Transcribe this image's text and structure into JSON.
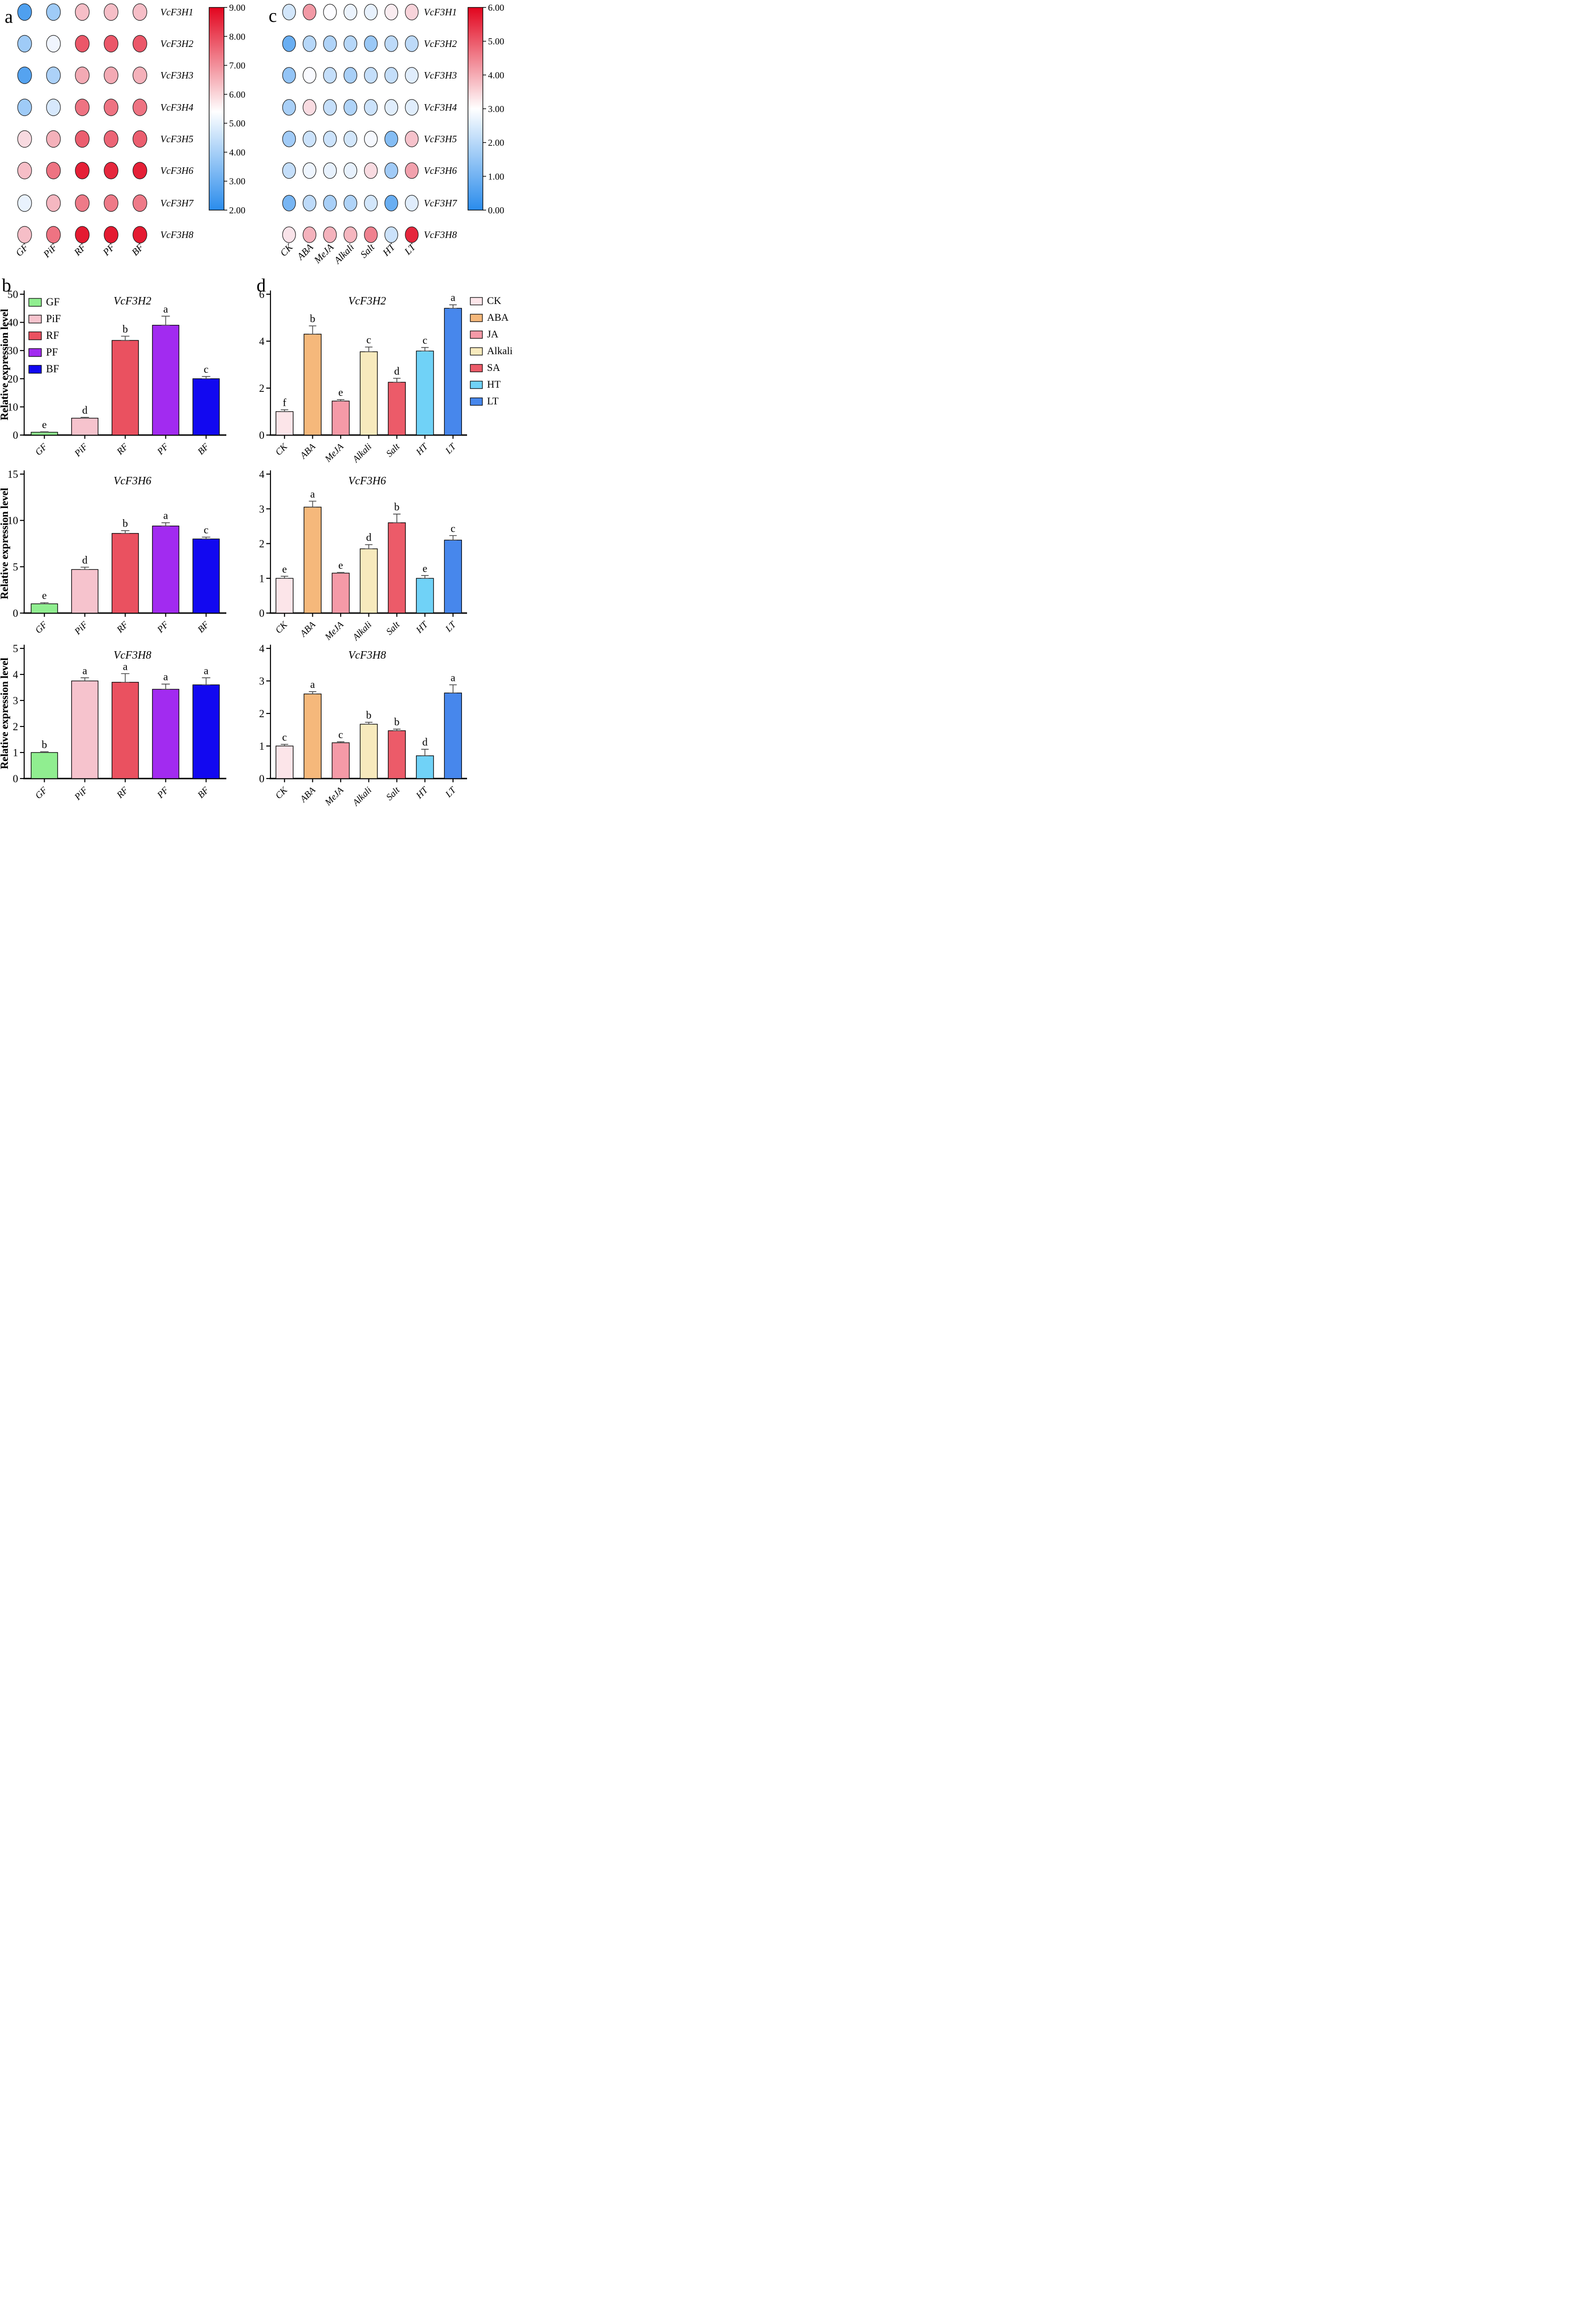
{
  "panels": {
    "a": {
      "letter": "a"
    },
    "b": {
      "letter": "b"
    },
    "c": {
      "letter": "c"
    },
    "d": {
      "letter": "d"
    }
  },
  "colors": {
    "heat_red": "#e2051e",
    "heat_white": "#fcfcff",
    "heat_blue": "#2a8cec",
    "axis": "#000000",
    "error_bar": "#4a4a4a"
  },
  "chart_data": [
    {
      "id": "heatmap_a",
      "type": "heatmap",
      "panel": "a",
      "columns": [
        "GF",
        "PiF",
        "RF",
        "PF",
        "BF"
      ],
      "rows": [
        "VcF3H1",
        "VcF3H2",
        "VcF3H3",
        "VcF3H4",
        "VcF3H5",
        "VcF3H6",
        "VcF3H7",
        "VcF3H8"
      ],
      "values": [
        [
          2.6,
          3.9,
          6.3,
          6.3,
          6.3
        ],
        [
          3.9,
          5.2,
          7.8,
          7.8,
          7.8
        ],
        [
          2.7,
          4.1,
          6.6,
          6.6,
          6.5
        ],
        [
          3.9,
          4.8,
          7.4,
          7.4,
          7.4
        ],
        [
          5.9,
          6.5,
          7.7,
          7.6,
          7.7
        ],
        [
          6.3,
          7.4,
          8.6,
          8.5,
          8.6
        ],
        [
          5.1,
          6.4,
          7.3,
          7.3,
          7.3
        ],
        [
          6.3,
          7.4,
          8.7,
          8.7,
          8.7
        ]
      ],
      "colorbar": {
        "min": 2,
        "max": 9,
        "mid": 5.4,
        "tick_labels": [
          "9.00",
          "8.00",
          "7.00",
          "6.00",
          "5.00",
          "4.00",
          "3.00",
          "2.00"
        ]
      }
    },
    {
      "id": "heatmap_c",
      "type": "heatmap",
      "panel": "c",
      "columns": [
        "CK",
        "ABA",
        "MeJA",
        "Alkali",
        "Salt",
        "HT",
        "LT"
      ],
      "rows": [
        "VcF3H1",
        "VcF3H2",
        "VcF3H3",
        "VcF3H4",
        "VcF3H5",
        "VcF3H6",
        "VcF3H7",
        "VcF3H8"
      ],
      "values": [
        [
          2.4,
          4.2,
          3.0,
          2.75,
          2.7,
          3.2,
          3.5
        ],
        [
          0.9,
          2.0,
          1.9,
          2.0,
          1.6,
          2.1,
          2.1
        ],
        [
          1.5,
          2.95,
          2.2,
          1.8,
          2.2,
          2.2,
          2.6
        ],
        [
          1.8,
          3.4,
          2.2,
          1.9,
          2.3,
          2.6,
          2.6
        ],
        [
          1.7,
          2.3,
          2.3,
          2.4,
          2.9,
          1.3,
          3.7
        ],
        [
          2.2,
          2.8,
          2.7,
          2.7,
          3.4,
          1.7,
          4.1
        ],
        [
          1.1,
          2.1,
          1.8,
          1.9,
          2.4,
          0.9,
          2.6
        ],
        [
          3.3,
          3.9,
          3.9,
          3.85,
          4.5,
          2.3,
          5.6
        ]
      ],
      "colorbar": {
        "min": 0,
        "max": 6,
        "mid": 3.0,
        "tick_labels": [
          "6.00",
          "5.00",
          "4.00",
          "3.00",
          "2.00",
          "1.00",
          "0.00"
        ]
      }
    },
    {
      "id": "b1",
      "type": "bar",
      "panel": "b",
      "title": "VcF3H2",
      "ylabel": "Relative expression level",
      "ylim": [
        0,
        50
      ],
      "yticks": [
        0,
        10,
        20,
        30,
        40,
        50
      ],
      "categories": [
        "GF",
        "PiF",
        "RF",
        "PF",
        "BF"
      ],
      "values": [
        1.0,
        6.0,
        33.6,
        39.0,
        20.0
      ],
      "errors": [
        0.15,
        0.3,
        1.5,
        3.2,
        0.8
      ],
      "sig_letters": [
        "e",
        "d",
        "b",
        "a",
        "c"
      ],
      "bar_colors": [
        "#90ee90",
        "#f6c3cd",
        "#ea5160",
        "#a22bf0",
        "#1208f0"
      ],
      "legend": [
        {
          "label": "GF",
          "color": "#90ee90"
        },
        {
          "label": "PiF",
          "color": "#f6c3cd"
        },
        {
          "label": "RF",
          "color": "#ea5160"
        },
        {
          "label": "PF",
          "color": "#a22bf0"
        },
        {
          "label": "BF",
          "color": "#1208f0"
        }
      ]
    },
    {
      "id": "b2",
      "type": "bar",
      "panel": "b",
      "title": "VcF3H6",
      "ylabel": "Relative expression level",
      "ylim": [
        0,
        15
      ],
      "yticks": [
        0,
        5,
        10,
        15
      ],
      "categories": [
        "GF",
        "PiF",
        "RF",
        "PF",
        "BF"
      ],
      "values": [
        1.0,
        4.7,
        8.6,
        9.4,
        8.0
      ],
      "errors": [
        0.12,
        0.25,
        0.3,
        0.35,
        0.2
      ],
      "sig_letters": [
        "e",
        "d",
        "b",
        "a",
        "c"
      ],
      "bar_colors": [
        "#90ee90",
        "#f6c3cd",
        "#ea5160",
        "#a22bf0",
        "#1208f0"
      ]
    },
    {
      "id": "b3",
      "type": "bar",
      "panel": "b",
      "title": "VcF3H8",
      "ylabel": "Relative expression level",
      "ylim": [
        0,
        5
      ],
      "yticks": [
        0,
        1,
        2,
        3,
        4,
        5
      ],
      "categories": [
        "GF",
        "PiF",
        "RF",
        "PF",
        "BF"
      ],
      "values": [
        1.0,
        3.75,
        3.7,
        3.43,
        3.6
      ],
      "errors": [
        0.03,
        0.12,
        0.33,
        0.2,
        0.27
      ],
      "sig_letters": [
        "b",
        "a",
        "a",
        "a",
        "a"
      ],
      "bar_colors": [
        "#90ee90",
        "#f6c3cd",
        "#ea5160",
        "#a22bf0",
        "#1208f0"
      ]
    },
    {
      "id": "d1",
      "type": "bar",
      "panel": "d",
      "title": "VcF3H2",
      "ylabel": "Relative expression level",
      "ylim": [
        0,
        6
      ],
      "yticks": [
        0,
        2,
        4,
        6
      ],
      "categories": [
        "CK",
        "ABA",
        "MeJA",
        "Alkali",
        "Salt",
        "HT",
        "LT"
      ],
      "values": [
        1.0,
        4.3,
        1.45,
        3.55,
        2.25,
        3.58,
        5.4
      ],
      "errors": [
        0.08,
        0.35,
        0.06,
        0.2,
        0.17,
        0.15,
        0.15
      ],
      "sig_letters": [
        "f",
        "b",
        "e",
        "c",
        "d",
        "c",
        "a"
      ],
      "bar_colors": [
        "#fce5e9",
        "#f5b87b",
        "#f59aa7",
        "#f7eabd",
        "#ec5b69",
        "#70d2f7",
        "#4787ec"
      ],
      "legend": [
        {
          "label": "CK",
          "color": "#fce5e9"
        },
        {
          "label": "ABA",
          "color": "#f5b87b"
        },
        {
          "label": "JA",
          "color": "#f59aa7"
        },
        {
          "label": "Alkali",
          "color": "#f7eabd"
        },
        {
          "label": "SA",
          "color": "#ec5b69"
        },
        {
          "label": "HT",
          "color": "#70d2f7"
        },
        {
          "label": "LT",
          "color": "#4787ec"
        }
      ]
    },
    {
      "id": "d2",
      "type": "bar",
      "panel": "d",
      "title": "VcF3H6",
      "ylabel": "Relative expression level",
      "ylim": [
        0,
        4
      ],
      "yticks": [
        0,
        1,
        2,
        3,
        4
      ],
      "categories": [
        "CK",
        "ABA",
        "MeJA",
        "Alkali",
        "Salt",
        "HT",
        "LT"
      ],
      "values": [
        1.0,
        3.05,
        1.15,
        1.85,
        2.6,
        1.0,
        2.1
      ],
      "errors": [
        0.06,
        0.17,
        0.02,
        0.12,
        0.25,
        0.08,
        0.13
      ],
      "sig_letters": [
        "e",
        "a",
        "e",
        "d",
        "b",
        "e",
        "c"
      ],
      "bar_colors": [
        "#fce5e9",
        "#f5b87b",
        "#f59aa7",
        "#f7eabd",
        "#ec5b69",
        "#70d2f7",
        "#4787ec"
      ]
    },
    {
      "id": "d3",
      "type": "bar",
      "panel": "d",
      "title": "VcF3H8",
      "ylabel": "Relative expression level",
      "ylim": [
        0,
        4
      ],
      "yticks": [
        0,
        1,
        2,
        3,
        4
      ],
      "categories": [
        "CK",
        "ABA",
        "MeJA",
        "Alkali",
        "Salt",
        "HT",
        "LT"
      ],
      "values": [
        1.0,
        2.6,
        1.1,
        1.67,
        1.47,
        0.7,
        2.63
      ],
      "errors": [
        0.05,
        0.07,
        0.03,
        0.06,
        0.05,
        0.2,
        0.25
      ],
      "sig_letters": [
        "c",
        "a",
        "c",
        "b",
        "b",
        "d",
        "a"
      ],
      "bar_colors": [
        "#fce5e9",
        "#f5b87b",
        "#f59aa7",
        "#f7eabd",
        "#ec5b69",
        "#70d2f7",
        "#4787ec"
      ]
    }
  ]
}
